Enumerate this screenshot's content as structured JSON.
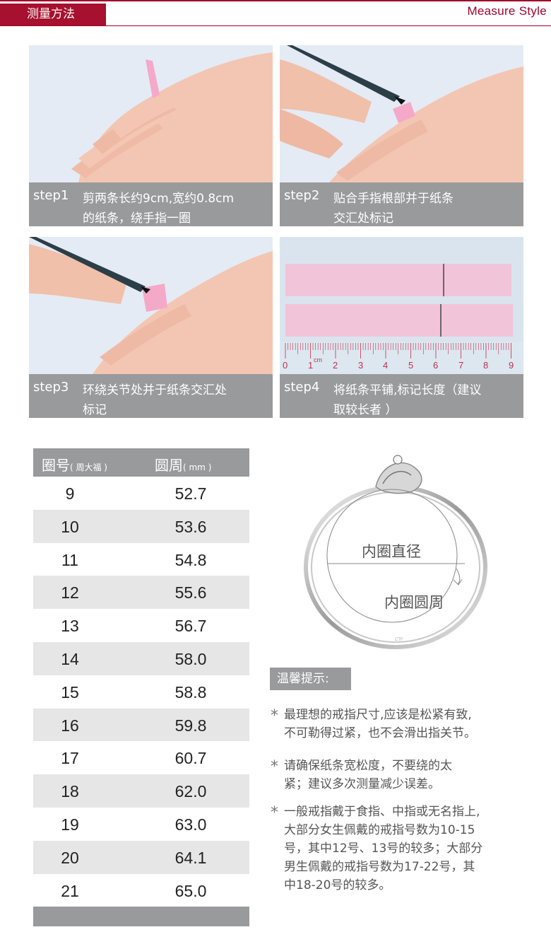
{
  "header": {
    "tag": "测量方法",
    "en": "Measure Style"
  },
  "steps": [
    {
      "label": "step1",
      "line1": "剪两条长约9cm,宽约0.8cm",
      "line2": "的纸条，绕手指一圈"
    },
    {
      "label": "step2",
      "line1": "贴合手指根部并于纸条",
      "line2": "交汇处标记"
    },
    {
      "label": "step3",
      "line1": "环绕关节处并于纸条交汇处",
      "line2": "标记"
    },
    {
      "label": "step4",
      "line1": "将纸条平铺,标记长度（建议",
      "line2": "取较长者 ）"
    }
  ],
  "ruler_ticks": [
    "0",
    "1",
    "2",
    "3",
    "4",
    "5",
    "6",
    "7",
    "8",
    "9"
  ],
  "ruler_unit": "cm",
  "table": {
    "col1": "圈号",
    "col1_note": "( 周大福 )",
    "col2": "圆周",
    "col2_note": "( mm )",
    "rows": [
      {
        "size": "9",
        "circ": "52.7"
      },
      {
        "size": "10",
        "circ": "53.6"
      },
      {
        "size": "11",
        "circ": "54.8"
      },
      {
        "size": "12",
        "circ": "55.6"
      },
      {
        "size": "13",
        "circ": "56.7"
      },
      {
        "size": "14",
        "circ": "58.0"
      },
      {
        "size": "15",
        "circ": "58.8"
      },
      {
        "size": "16",
        "circ": "59.8"
      },
      {
        "size": "17",
        "circ": "60.7"
      },
      {
        "size": "18",
        "circ": "62.0"
      },
      {
        "size": "19",
        "circ": "63.0"
      },
      {
        "size": "20",
        "circ": "64.1"
      },
      {
        "size": "21",
        "circ": "65.0"
      }
    ]
  },
  "ring": {
    "diameter_label": "内圈直径",
    "circumference_label": "内圈圆周",
    "stamp": "CTF"
  },
  "tips": {
    "title": "温馨提示:",
    "items": [
      [
        "最理想的戒指尺寸,应该是松紧有致,",
        "不可勒得过紧，也不会滑出指关节。"
      ],
      [
        "请确保纸条宽松度，不要绕的太",
        "紧；建议多次测量减少误差。"
      ],
      [
        "一般戒指戴于食指、中指或无名指上,",
        "大部分女生佩戴的戒指号数为10-15",
        "号，其中12号、13号的较多；大部分",
        "男生佩戴的戒指号数为17-22号，其",
        "中18-20号的较多。"
      ]
    ]
  },
  "colors": {
    "brand": "#a7102e",
    "caption_bg": "#999a9c",
    "alt_row": "#e6e6e6",
    "paper": "#f2c4da"
  }
}
